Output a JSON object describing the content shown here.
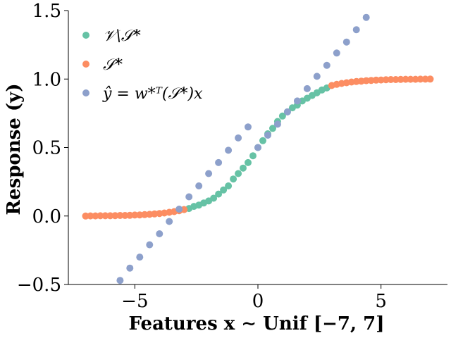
{
  "chart_data": {
    "type": "scatter",
    "xlabel": "Features x ∼ Unif [−7, 7]",
    "ylabel": "Response (y)",
    "xlim": [
      -7.7,
      7.7
    ],
    "ylim": [
      -0.5,
      1.5
    ],
    "xticks": [
      -5,
      0,
      5
    ],
    "xtick_labels": [
      "−5",
      "0",
      "5"
    ],
    "yticks": [
      -0.5,
      0.0,
      0.5,
      1.0,
      1.5
    ],
    "ytick_labels": [
      "−0.5",
      "0.0",
      "0.5",
      "1.0",
      "1.5"
    ],
    "grid": false,
    "legend_position": "top-left",
    "series": [
      {
        "name": "𝒱\\𝒮*",
        "color": "#66c2a5",
        "points": [
          [
            -3.0,
            0.047
          ],
          [
            -2.8,
            0.055
          ],
          [
            -2.6,
            0.07
          ],
          [
            -2.4,
            0.08
          ],
          [
            -2.2,
            0.095
          ],
          [
            -2.0,
            0.11
          ],
          [
            -1.8,
            0.13
          ],
          [
            -1.6,
            0.16
          ],
          [
            -1.4,
            0.19
          ],
          [
            -1.2,
            0.22
          ],
          [
            -1.0,
            0.27
          ],
          [
            -0.8,
            0.31
          ],
          [
            -0.6,
            0.35
          ],
          [
            -0.4,
            0.39
          ],
          [
            -0.2,
            0.44
          ],
          [
            0.0,
            0.5
          ],
          [
            0.2,
            0.55
          ],
          [
            0.4,
            0.6
          ],
          [
            0.6,
            0.64
          ],
          [
            0.8,
            0.69
          ],
          [
            1.0,
            0.73
          ],
          [
            1.2,
            0.76
          ],
          [
            1.4,
            0.79
          ],
          [
            1.6,
            0.81
          ],
          [
            1.8,
            0.84
          ],
          [
            2.0,
            0.86
          ],
          [
            2.2,
            0.88
          ],
          [
            2.4,
            0.9
          ],
          [
            2.6,
            0.92
          ],
          [
            2.8,
            0.935
          ]
        ]
      },
      {
        "name": "𝒮*",
        "color": "#fc8d62",
        "points": [
          [
            -7.0,
            0.0
          ],
          [
            -6.8,
            0.001
          ],
          [
            -6.6,
            0.001
          ],
          [
            -6.4,
            0.002
          ],
          [
            -6.2,
            0.002
          ],
          [
            -6.0,
            0.002
          ],
          [
            -5.8,
            0.003
          ],
          [
            -5.6,
            0.004
          ],
          [
            -5.4,
            0.004
          ],
          [
            -5.2,
            0.005
          ],
          [
            -5.0,
            0.007
          ],
          [
            -4.8,
            0.008
          ],
          [
            -4.6,
            0.01
          ],
          [
            -4.4,
            0.012
          ],
          [
            -4.2,
            0.015
          ],
          [
            -4.0,
            0.018
          ],
          [
            -3.8,
            0.022
          ],
          [
            -3.6,
            0.027
          ],
          [
            -3.4,
            0.032
          ],
          [
            -3.2,
            0.039
          ],
          [
            -3.0,
            0.047
          ],
          [
            3.0,
            0.953
          ],
          [
            3.2,
            0.961
          ],
          [
            3.4,
            0.968
          ],
          [
            3.6,
            0.973
          ],
          [
            3.8,
            0.978
          ],
          [
            4.0,
            0.982
          ],
          [
            4.2,
            0.985
          ],
          [
            4.4,
            0.988
          ],
          [
            4.6,
            0.99
          ],
          [
            4.8,
            0.992
          ],
          [
            5.0,
            0.993
          ],
          [
            5.2,
            0.995
          ],
          [
            5.4,
            0.996
          ],
          [
            5.6,
            0.996
          ],
          [
            5.8,
            0.997
          ],
          [
            6.0,
            0.998
          ],
          [
            6.2,
            0.998
          ],
          [
            6.4,
            0.998
          ],
          [
            6.6,
            0.999
          ],
          [
            6.8,
            0.999
          ],
          [
            7.0,
            1.0
          ]
        ]
      },
      {
        "name": "ŷ = w*ᵀ(𝒮*)x",
        "color": "#8da0cb",
        "points": [
          [
            -5.9,
            -0.53
          ],
          [
            -5.6,
            -0.47
          ],
          [
            -5.2,
            -0.38
          ],
          [
            -4.8,
            -0.3
          ],
          [
            -4.4,
            -0.21
          ],
          [
            -4.0,
            -0.13
          ],
          [
            -3.6,
            -0.04
          ],
          [
            -3.2,
            0.05
          ],
          [
            -2.8,
            0.14
          ],
          [
            -2.4,
            0.22
          ],
          [
            -2.0,
            0.31
          ],
          [
            -1.6,
            0.39
          ],
          [
            -1.2,
            0.48
          ],
          [
            -0.8,
            0.57
          ],
          [
            -0.4,
            0.65
          ],
          [
            0.0,
            0.5
          ],
          [
            0.4,
            0.59
          ],
          [
            0.8,
            0.67
          ],
          [
            1.2,
            0.76
          ],
          [
            1.6,
            0.84
          ],
          [
            2.0,
            0.93
          ],
          [
            2.4,
            1.02
          ],
          [
            2.8,
            1.1
          ],
          [
            3.2,
            1.19
          ],
          [
            3.6,
            1.27
          ],
          [
            4.0,
            1.36
          ],
          [
            4.4,
            1.45
          ],
          [
            4.8,
            1.53
          ]
        ]
      }
    ]
  },
  "legend": {
    "items": [
      {
        "label": "𝒱\\𝒮*",
        "color": "#66c2a5"
      },
      {
        "label": "𝒮*",
        "color": "#fc8d62"
      },
      {
        "label": "ŷ = w*ᵀ(𝒮*)x",
        "color": "#8da0cb"
      }
    ]
  }
}
